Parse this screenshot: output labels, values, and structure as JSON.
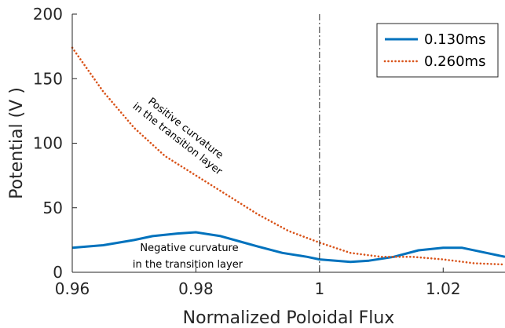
{
  "chart_data": {
    "type": "line",
    "title": "",
    "xlabel": "Normalized Poloidal Flux",
    "ylabel": "Potential (V )",
    "xlim": [
      0.96,
      1.03
    ],
    "ylim": [
      0,
      200
    ],
    "x_ticks": [
      "0.96",
      "0.98",
      "1",
      "1.02"
    ],
    "y_ticks": [
      "0",
      "50",
      "100",
      "150",
      "200"
    ],
    "grid": false,
    "legend_position": "top-right",
    "reference_line_x": 1.0,
    "series": [
      {
        "name": "0.130ms",
        "color": "#0072BD",
        "style": "solid",
        "x": [
          0.96,
          0.965,
          0.97,
          0.973,
          0.977,
          0.98,
          0.984,
          0.987,
          0.99,
          0.994,
          0.998,
          1.0,
          1.005,
          1.008,
          1.012,
          1.016,
          1.02,
          1.023,
          1.027,
          1.03
        ],
        "y": [
          19,
          21,
          25,
          28,
          30,
          31,
          28,
          24,
          20,
          15,
          12,
          10,
          8,
          9,
          12,
          17,
          19,
          19,
          15,
          12
        ]
      },
      {
        "name": "0.260ms",
        "color": "#D95319",
        "style": "dotted",
        "x": [
          0.96,
          0.965,
          0.97,
          0.975,
          0.98,
          0.985,
          0.99,
          0.995,
          1.0,
          1.005,
          1.01,
          1.015,
          1.02,
          1.025,
          1.03
        ],
        "y": [
          174,
          140,
          112,
          90,
          75,
          60,
          45,
          32,
          23,
          15,
          12,
          12,
          10,
          7,
          6
        ]
      }
    ],
    "annotations": [
      {
        "id": "positive",
        "lines": [
          "Positive curvature",
          "in the transition layer"
        ]
      },
      {
        "id": "negative",
        "lines": [
          "Negative curvature",
          "in the transition layer"
        ]
      }
    ]
  }
}
